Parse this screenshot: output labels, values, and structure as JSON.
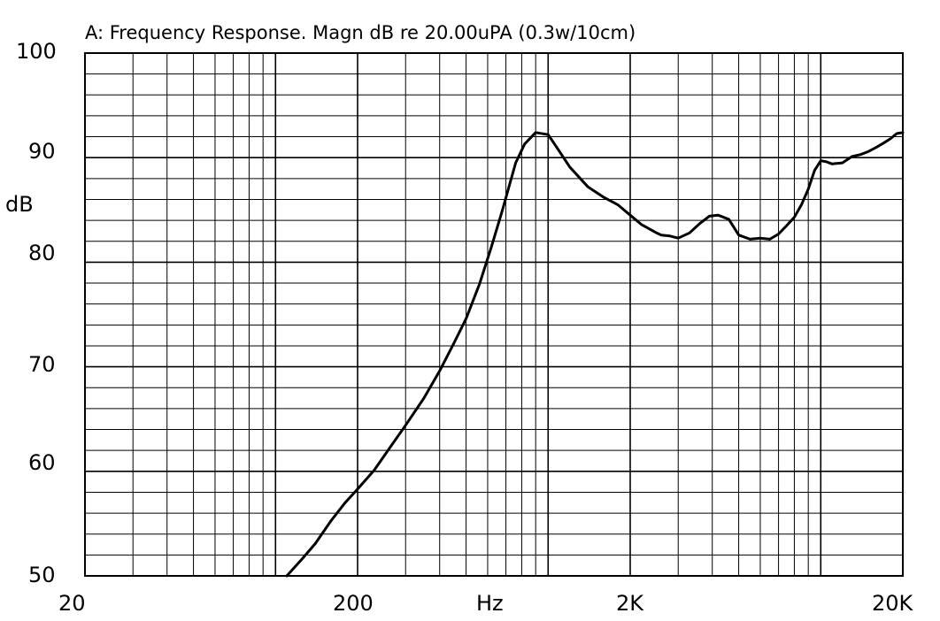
{
  "chart_data": {
    "type": "line",
    "title": "A: Frequency Response. Magn dB re 20.00uPA (0.3w/10cm)",
    "xlabel": "Hz",
    "ylabel": "dB",
    "x_scale": "log",
    "xlim": [
      20,
      20000
    ],
    "ylim": [
      50,
      100
    ],
    "grid": true,
    "x_ticks": [
      {
        "value": 20,
        "label": "20"
      },
      {
        "value": 200,
        "label": "200"
      },
      {
        "value": 2000,
        "label": "2K"
      },
      {
        "value": 20000,
        "label": "20K"
      }
    ],
    "y_ticks": [
      {
        "value": 100,
        "label": "100"
      },
      {
        "value": 90,
        "label": "90"
      },
      {
        "value": 80,
        "label": "80"
      },
      {
        "value": 70,
        "label": "70"
      },
      {
        "value": 60,
        "label": "60"
      },
      {
        "value": 50,
        "label": "50"
      }
    ],
    "series": [
      {
        "x": [
          110,
          125,
          140,
          160,
          180,
          200,
          230,
          260,
          300,
          350,
          400,
          450,
          500,
          560,
          620,
          680,
          720,
          760,
          820,
          900,
          1000,
          1100,
          1200,
          1400,
          1600,
          1800,
          2000,
          2200,
          2500,
          2600,
          2800,
          3000,
          3300,
          3600,
          3900,
          4200,
          4600,
          5000,
          5500,
          6000,
          6500,
          7000,
          7500,
          8000,
          8500,
          9000,
          9500,
          10000,
          10500,
          11000,
          12000,
          13000,
          14000,
          15000,
          16000,
          17000,
          18000,
          19000,
          20000
        ],
        "y": [
          50.0,
          51.6,
          53.1,
          55.3,
          57.0,
          58.3,
          60.1,
          62.1,
          64.4,
          67.0,
          69.6,
          72.2,
          74.6,
          77.9,
          81.5,
          85.0,
          87.3,
          89.5,
          91.3,
          92.4,
          92.2,
          90.6,
          89.1,
          87.2,
          86.2,
          85.5,
          84.5,
          83.6,
          82.8,
          82.6,
          82.5,
          82.3,
          82.8,
          83.7,
          84.4,
          84.5,
          84.1,
          82.6,
          82.2,
          82.3,
          82.2,
          82.7,
          83.5,
          84.3,
          85.5,
          87.0,
          88.8,
          89.7,
          89.6,
          89.4,
          89.5,
          90.1,
          90.3,
          90.6,
          91.0,
          91.4,
          91.8,
          92.3,
          92.4
        ]
      }
    ]
  }
}
